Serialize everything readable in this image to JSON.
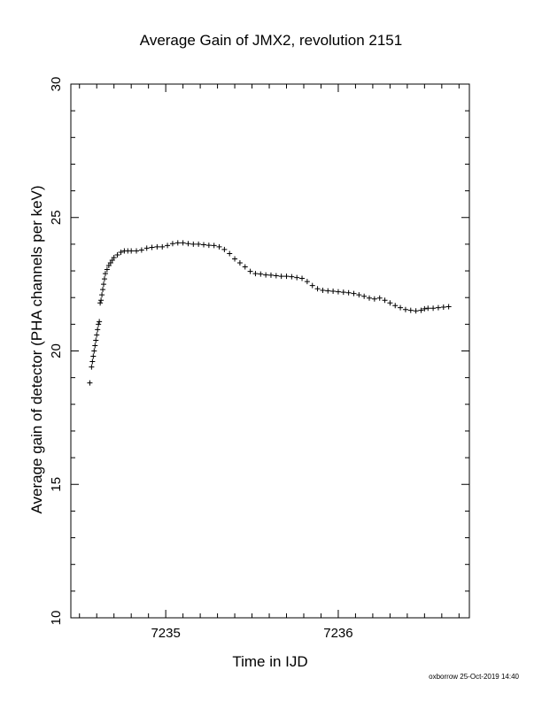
{
  "chart_data": {
    "type": "scatter",
    "title": "Average Gain of JMX2, revolution 2151",
    "xlabel": "Time in IJD",
    "ylabel": "Average gain of detector (PHA channels per keV)",
    "xlim": [
      7234.45,
      7236.76
    ],
    "ylim": [
      10,
      30
    ],
    "xticks": [
      7235,
      7236
    ],
    "yticks": [
      10,
      15,
      20,
      25,
      30
    ],
    "marker": "plus",
    "grid": false,
    "series": [
      {
        "x": [
          7234.56,
          7234.57,
          7234.575,
          7234.58,
          7234.585,
          7234.59,
          7234.595,
          7234.6,
          7234.605,
          7234.61,
          7234.615,
          7234.62,
          7234.625,
          7234.63,
          7234.635,
          7234.64,
          7234.645,
          7234.65,
          7234.66,
          7234.67,
          7234.68,
          7234.69,
          7234.7,
          7234.72,
          7234.74,
          7234.76,
          7234.78,
          7234.8,
          7234.83,
          7234.86,
          7234.89,
          7234.92,
          7234.95,
          7234.98,
          7235.01,
          7235.04,
          7235.07,
          7235.1,
          7235.13,
          7235.16,
          7235.19,
          7235.22,
          7235.25,
          7235.28,
          7235.31,
          7235.34,
          7235.37,
          7235.4,
          7235.43,
          7235.46,
          7235.49,
          7235.52,
          7235.55,
          7235.58,
          7235.61,
          7235.64,
          7235.67,
          7235.7,
          7235.73,
          7235.76,
          7235.79,
          7235.82,
          7235.85,
          7235.88,
          7235.91,
          7235.94,
          7235.97,
          7236.0,
          7236.03,
          7236.06,
          7236.09,
          7236.12,
          7236.15,
          7236.18,
          7236.21,
          7236.24,
          7236.27,
          7236.3,
          7236.33,
          7236.36,
          7236.39,
          7236.42,
          7236.45,
          7236.48,
          7236.5,
          7236.52,
          7236.55,
          7236.58,
          7236.61,
          7236.64
        ],
        "y": [
          18.8,
          19.4,
          19.6,
          19.8,
          20.0,
          20.2,
          20.4,
          20.6,
          20.8,
          21.0,
          21.1,
          21.8,
          21.9,
          22.1,
          22.3,
          22.5,
          22.7,
          22.9,
          23.05,
          23.2,
          23.3,
          23.4,
          23.5,
          23.6,
          23.7,
          23.75,
          23.75,
          23.75,
          23.75,
          23.78,
          23.85,
          23.88,
          23.9,
          23.9,
          23.95,
          24.02,
          24.05,
          24.05,
          24.02,
          24.0,
          24.0,
          23.98,
          23.96,
          23.95,
          23.9,
          23.8,
          23.65,
          23.45,
          23.3,
          23.15,
          22.98,
          22.9,
          22.88,
          22.85,
          22.84,
          22.82,
          22.8,
          22.8,
          22.78,
          22.75,
          22.72,
          22.6,
          22.45,
          22.33,
          22.27,
          22.25,
          22.24,
          22.22,
          22.2,
          22.18,
          22.15,
          22.1,
          22.05,
          21.98,
          21.95,
          21.98,
          21.9,
          21.8,
          21.7,
          21.62,
          21.55,
          21.52,
          21.5,
          21.52,
          21.58,
          21.6,
          21.6,
          21.62,
          21.64,
          21.66
        ]
      }
    ]
  },
  "footer": "oxborrow 25-Oct-2019 14:40"
}
